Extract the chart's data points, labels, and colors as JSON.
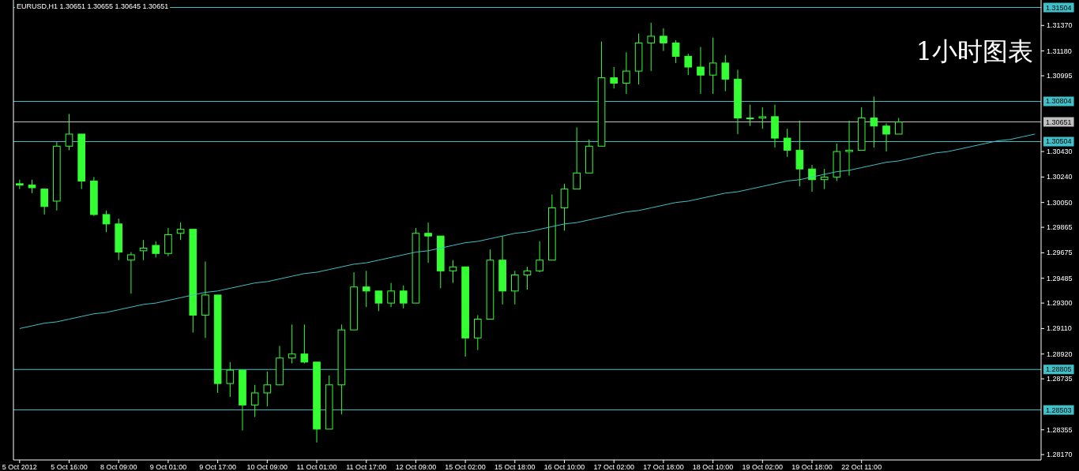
{
  "chart_data": {
    "type": "candlestick",
    "title": "EURUSD,H1  1.30651 1.30655 1.30645 1.30651",
    "annotations": [
      "1小时图表"
    ],
    "color": "#33ff33",
    "categories": [
      "5 Oct 2012",
      null,
      null,
      null,
      "5 Oct 16:00",
      null,
      null,
      null,
      "8 Oct 09:00",
      null,
      null,
      null,
      "9 Oct 01:00",
      null,
      null,
      null,
      "9 Oct 17:00",
      null,
      null,
      null,
      "10 Oct 09:00",
      null,
      null,
      null,
      "11 Oct 01:00",
      null,
      null,
      null,
      "11 Oct 17:00",
      null,
      null,
      null,
      "12 Oct 09:00",
      null,
      null,
      null,
      "15 Oct 02:00",
      null,
      null,
      null,
      "15 Oct 18:00",
      null,
      null,
      null,
      "16 Oct 10:00",
      null,
      null,
      null,
      "17 Oct 02:00",
      null,
      null,
      null,
      "17 Oct 18:00",
      null,
      null,
      null,
      "18 Oct 10:00",
      null,
      null,
      null,
      "19 Oct 02:00",
      null,
      null,
      null,
      "19 Oct 18:00",
      null,
      null,
      null,
      "22 Oct 11:00",
      null,
      null,
      null,
      null,
      null,
      null,
      null,
      null,
      null,
      null,
      null,
      null,
      null,
      null
    ],
    "ohlc": [
      [
        1.3019,
        1.3022,
        1.3015,
        1.3018
      ],
      [
        1.3018,
        1.3022,
        1.3012,
        1.3016
      ],
      [
        1.3015,
        1.3015,
        1.2996,
        1.3002
      ],
      [
        1.3006,
        1.305,
        1.2999,
        1.3047
      ],
      [
        1.3047,
        1.3071,
        1.3044,
        1.3056
      ],
      [
        1.3056,
        1.3056,
        1.3015,
        1.3021
      ],
      [
        1.3021,
        1.3024,
        1.2995,
        1.2996
      ],
      [
        1.2996,
        1.2999,
        1.2983,
        1.2989
      ],
      [
        1.2989,
        1.2993,
        1.2962,
        1.2968
      ],
      [
        1.2962,
        1.2968,
        1.2937,
        1.2966
      ],
      [
        1.2969,
        1.2977,
        1.2962,
        1.2971
      ],
      [
        1.2973,
        1.2976,
        1.2964,
        1.2967
      ],
      [
        1.2967,
        1.2986,
        1.2965,
        1.2981
      ],
      [
        1.2982,
        1.299,
        1.2977,
        1.2985
      ],
      [
        1.2985,
        1.2985,
        1.2908,
        1.2921
      ],
      [
        1.2921,
        1.2961,
        1.2904,
        1.2936
      ],
      [
        1.2936,
        1.2936,
        1.2863,
        1.287
      ],
      [
        1.287,
        1.2886,
        1.286,
        1.288
      ],
      [
        1.288,
        1.288,
        1.2835,
        1.2854
      ],
      [
        1.2854,
        1.2869,
        1.2845,
        1.2863
      ],
      [
        1.2863,
        1.2879,
        1.2853,
        1.2869
      ],
      [
        1.2869,
        1.2898,
        1.2869,
        1.2889
      ],
      [
        1.2889,
        1.2914,
        1.2885,
        1.2892
      ],
      [
        1.2892,
        1.2914,
        1.2885,
        1.2886
      ],
      [
        1.2886,
        1.2886,
        1.2826,
        1.2836
      ],
      [
        1.2836,
        1.2876,
        1.2836,
        1.2869
      ],
      [
        1.2869,
        1.2914,
        1.2847,
        1.291
      ],
      [
        1.291,
        1.2953,
        1.291,
        1.2942
      ],
      [
        1.2942,
        1.2954,
        1.2927,
        1.2939
      ],
      [
        1.2939,
        1.2939,
        1.2924,
        1.293
      ],
      [
        1.293,
        1.2945,
        1.2927,
        1.2939
      ],
      [
        1.2939,
        1.2943,
        1.2926,
        1.293
      ],
      [
        1.293,
        1.2986,
        1.293,
        1.2982
      ],
      [
        1.2982,
        1.299,
        1.296,
        1.298
      ],
      [
        1.298,
        1.298,
        1.2941,
        1.2954
      ],
      [
        1.2954,
        1.2962,
        1.2945,
        1.2957
      ],
      [
        1.2957,
        1.2957,
        1.289,
        1.2904
      ],
      [
        1.2904,
        1.2921,
        1.2895,
        1.2918
      ],
      [
        1.2918,
        1.297,
        1.2918,
        1.2962
      ],
      [
        1.2962,
        1.298,
        1.2929,
        1.2939
      ],
      [
        1.2939,
        1.2954,
        1.2929,
        1.2951
      ],
      [
        1.2951,
        1.2957,
        1.294,
        1.2954
      ],
      [
        1.2954,
        1.2976,
        1.2953,
        1.2962
      ],
      [
        1.2962,
        1.3011,
        1.2962,
        1.3001
      ],
      [
        1.3001,
        1.3019,
        1.2984,
        1.3015
      ],
      [
        1.3015,
        1.3061,
        1.3015,
        1.3027
      ],
      [
        1.3027,
        1.3052,
        1.3027,
        1.3047
      ],
      [
        1.3047,
        1.3125,
        1.3047,
        1.3098
      ],
      [
        1.3098,
        1.3106,
        1.309,
        1.3094
      ],
      [
        1.3094,
        1.3117,
        1.3086,
        1.3103
      ],
      [
        1.3103,
        1.3131,
        1.3093,
        1.3124
      ],
      [
        1.3124,
        1.3139,
        1.3103,
        1.3129
      ],
      [
        1.3129,
        1.3135,
        1.3118,
        1.3124
      ],
      [
        1.3124,
        1.3126,
        1.3109,
        1.3114
      ],
      [
        1.3114,
        1.3116,
        1.31,
        1.3106
      ],
      [
        1.3106,
        1.3121,
        1.3086,
        1.31
      ],
      [
        1.31,
        1.3128,
        1.3086,
        1.3109
      ],
      [
        1.3109,
        1.3115,
        1.3088,
        1.3097
      ],
      [
        1.3097,
        1.3104,
        1.3056,
        1.3068
      ],
      [
        1.3068,
        1.3078,
        1.3062,
        1.3068
      ],
      [
        1.3068,
        1.3076,
        1.306,
        1.3069
      ],
      [
        1.3069,
        1.3078,
        1.3046,
        1.3053
      ],
      [
        1.3053,
        1.306,
        1.3039,
        1.3044
      ],
      [
        1.3044,
        1.3066,
        1.3017,
        1.303
      ],
      [
        1.303,
        1.3033,
        1.3013,
        1.3022
      ],
      [
        1.3022,
        1.303,
        1.3015,
        1.3024
      ],
      [
        1.3024,
        1.3049,
        1.3021,
        1.3043
      ],
      [
        1.3043,
        1.3066,
        1.3025,
        1.3044
      ],
      [
        1.3044,
        1.3076,
        1.3044,
        1.3068
      ],
      [
        1.3068,
        1.3084,
        1.3046,
        1.3062
      ],
      [
        1.3062,
        1.3064,
        1.3043,
        1.3056
      ],
      [
        1.3056,
        1.3068,
        1.3056,
        1.3065
      ],
      null,
      null,
      null,
      null,
      null,
      null,
      null,
      null,
      null,
      null,
      null
    ],
    "series": [
      {
        "type": "line",
        "color": "#40c0c8",
        "values": [
          1.2911,
          1.2913,
          1.2915,
          1.2916,
          1.2918,
          1.292,
          1.2922,
          1.2923,
          1.2925,
          1.2927,
          1.2929,
          1.293,
          1.2932,
          1.2934,
          1.2936,
          1.2938,
          1.2939,
          1.2941,
          1.2943,
          1.2945,
          1.2946,
          1.2948,
          1.295,
          1.2952,
          1.2953,
          1.2955,
          1.2957,
          1.2959,
          1.296,
          1.2962,
          1.2964,
          1.2966,
          1.2968,
          1.2969,
          1.2971,
          1.2973,
          1.2975,
          1.2976,
          1.2978,
          1.298,
          1.2982,
          1.2983,
          1.2985,
          1.2987,
          1.2989,
          1.299,
          1.2992,
          1.2994,
          1.2996,
          1.2998,
          1.2999,
          1.3001,
          1.3003,
          1.3005,
          1.3006,
          1.3008,
          1.301,
          1.3012,
          1.3013,
          1.3015,
          1.3017,
          1.3019,
          1.3021,
          1.3022,
          1.3024,
          1.3026,
          1.3028,
          1.3029,
          1.3031,
          1.3033,
          1.3035,
          1.3036,
          1.3038,
          1.304,
          1.3042,
          1.3043,
          1.3045,
          1.3047,
          1.3049,
          1.3051,
          1.3052,
          1.3054,
          1.3056
        ]
      }
    ],
    "ref_lines": [
      {
        "axis": "y",
        "value": 1.31504,
        "label": "1.31504",
        "color": "#40c0c8"
      },
      {
        "axis": "y",
        "value": 1.30804,
        "label": "1.30804",
        "color": "#40c0c8"
      },
      {
        "axis": "y",
        "value": 1.30651,
        "label": "1.30651",
        "color": "#c0c0c0"
      },
      {
        "axis": "y",
        "value": 1.30504,
        "label": "1.30504",
        "color": "#40c0c8"
      },
      {
        "axis": "y",
        "value": 1.28805,
        "label": "1.28805",
        "color": "#40c0c8"
      },
      {
        "axis": "y",
        "value": 1.28503,
        "label": "1.28503",
        "color": "#40c0c8"
      }
    ],
    "ylim": [
      1.2813,
      1.3156
    ],
    "yticks": [
      {
        "value": 1.3137,
        "label": "1.31370"
      },
      {
        "value": 1.3118,
        "label": "1.31180"
      },
      {
        "value": 1.30995,
        "label": "1.30995"
      },
      {
        "value": 1.3043,
        "label": "1.30430"
      },
      {
        "value": 1.3024,
        "label": "1.30240"
      },
      {
        "value": 1.3005,
        "label": "1.30050"
      },
      {
        "value": 1.29865,
        "label": "1.29865"
      },
      {
        "value": 1.29675,
        "label": "1.29675"
      },
      {
        "value": 1.29485,
        "label": "1.29485"
      },
      {
        "value": 1.293,
        "label": "1.29300"
      },
      {
        "value": 1.2911,
        "label": "1.29110"
      },
      {
        "value": 1.2892,
        "label": "1.28920"
      },
      {
        "value": 1.28735,
        "label": "1.28735"
      },
      {
        "value": 1.28355,
        "label": "1.28355"
      },
      {
        "value": 1.2817,
        "label": "1.28170"
      }
    ],
    "grid": false
  }
}
